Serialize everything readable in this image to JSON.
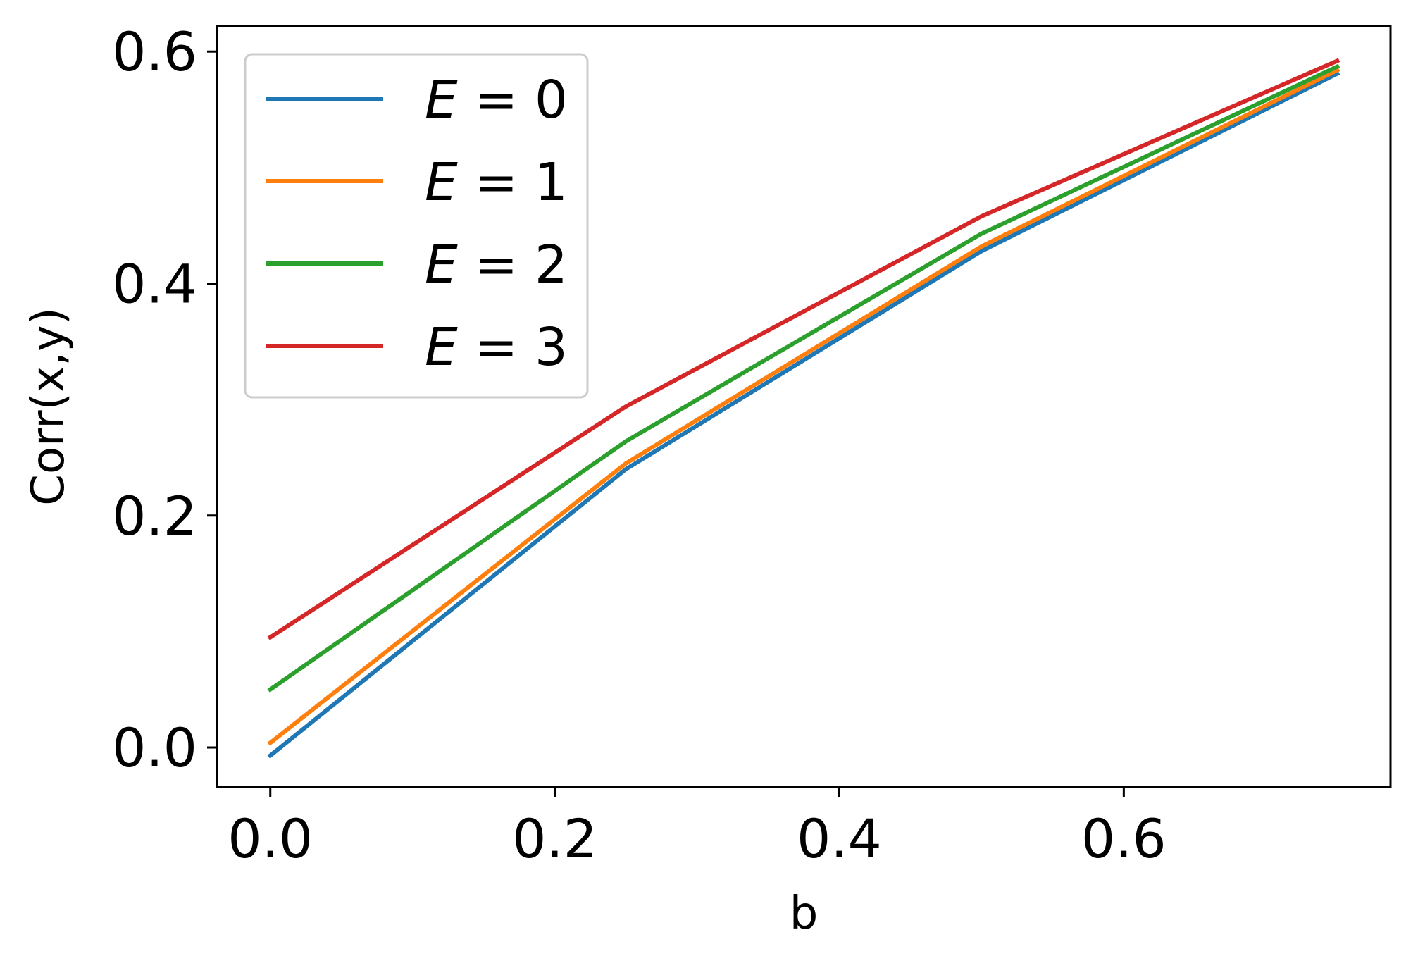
{
  "chart_data": {
    "type": "line",
    "title": "",
    "xlabel": "b",
    "ylabel": "Corr(x,y)",
    "xlim": [
      -0.0375,
      0.7875
    ],
    "ylim": [
      -0.034,
      0.622
    ],
    "xticks": [
      0.0,
      0.2,
      0.4,
      0.6
    ],
    "xtick_labels": [
      "0.0",
      "0.2",
      "0.4",
      "0.6"
    ],
    "yticks": [
      0.0,
      0.2,
      0.4,
      0.6
    ],
    "ytick_labels": [
      "0.0",
      "0.2",
      "0.4",
      "0.6"
    ],
    "grid": false,
    "legend_position": "upper-left",
    "x": [
      0.0,
      0.25,
      0.5,
      0.75
    ],
    "series": [
      {
        "name": "E = 0",
        "name_var": "E",
        "name_rest": " = 0",
        "color": "#1f77b4",
        "values": [
          -0.007,
          0.24,
          0.428,
          0.581
        ]
      },
      {
        "name": "E = 1",
        "name_var": "E",
        "name_rest": " = 1",
        "color": "#ff7f0e",
        "values": [
          0.004,
          0.245,
          0.432,
          0.584
        ]
      },
      {
        "name": "E = 2",
        "name_var": "E",
        "name_rest": " = 2",
        "color": "#2ca02c",
        "values": [
          0.05,
          0.264,
          0.443,
          0.587
        ]
      },
      {
        "name": "E = 3",
        "name_var": "E",
        "name_rest": " = 3",
        "color": "#d62728",
        "values": [
          0.095,
          0.294,
          0.458,
          0.592
        ]
      }
    ]
  }
}
